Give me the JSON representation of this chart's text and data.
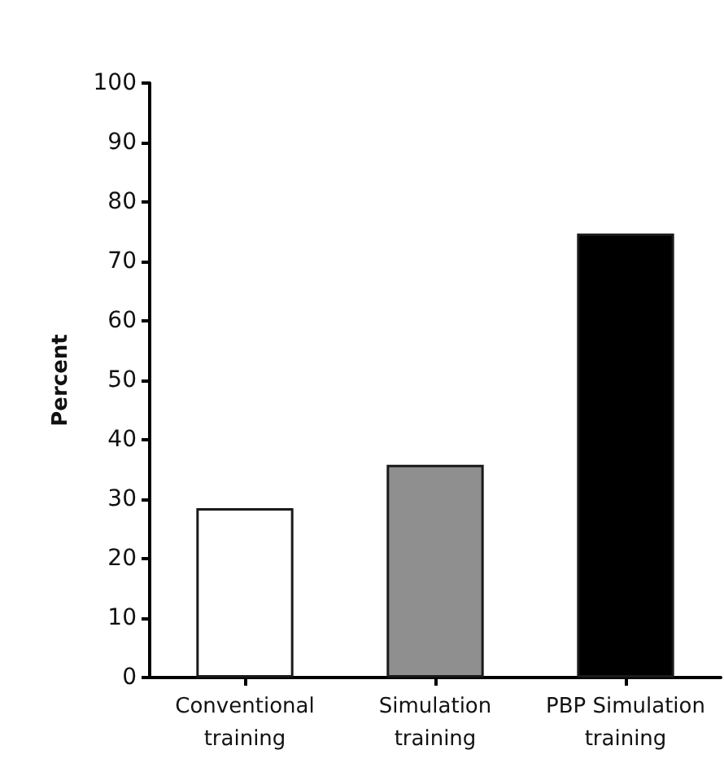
{
  "chart_data": {
    "type": "bar",
    "ylabel": "Percent",
    "categories": [
      "Conventional\ntraining",
      "Simulation\ntraining",
      "PBP Simulation\ntraining"
    ],
    "values": [
      28.5,
      35.8,
      74.7
    ],
    "colors": [
      "#ffffff",
      "#8f8f8f",
      "#000000"
    ],
    "ylim": [
      0,
      100
    ],
    "yticks": [
      0,
      10,
      20,
      30,
      40,
      50,
      60,
      70,
      80,
      90,
      100
    ],
    "grid": false
  }
}
